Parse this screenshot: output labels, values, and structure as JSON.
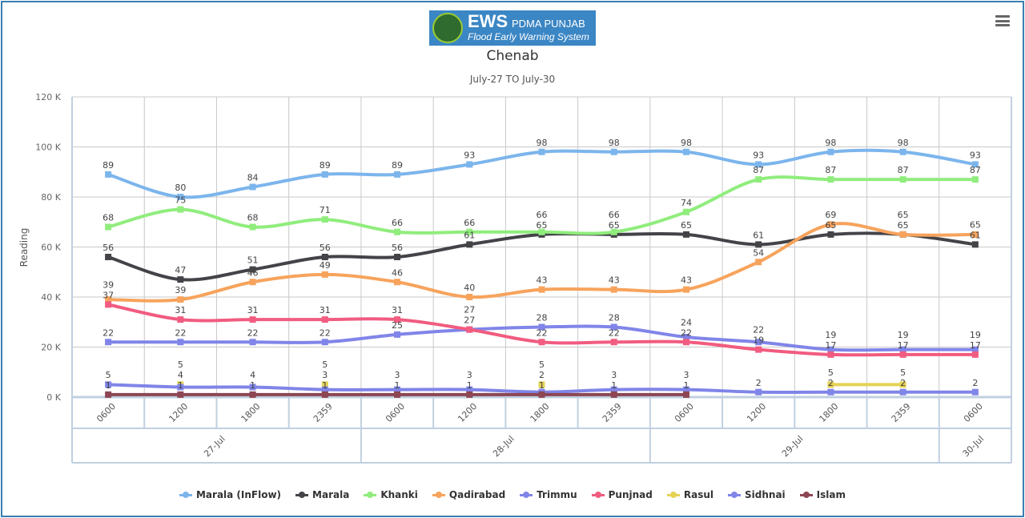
{
  "logo": {
    "big": "EWS",
    "pd": "PDMA PUNJAB",
    "sub": "Flood Early Warning System"
  },
  "menu_icon": "hamburger-icon",
  "chart_data": {
    "type": "line",
    "title": "Chenab",
    "subtitle": "July-27 TO July-30",
    "ylabel": "Reading",
    "ylim": [
      0,
      120
    ],
    "yticks": [
      "0 K",
      "20 K",
      "40 K",
      "60 K",
      "80 K",
      "100 K",
      "120 K"
    ],
    "x": [
      "0600",
      "1200",
      "1800",
      "2359",
      "0600",
      "1200",
      "1800",
      "2359",
      "0600",
      "1200",
      "1800",
      "2359",
      "0600"
    ],
    "groups": [
      {
        "label": "27-Jul",
        "span": 4
      },
      {
        "label": "28-Jul",
        "span": 4
      },
      {
        "label": "29-Jul",
        "span": 4
      },
      {
        "label": "30-Jul",
        "span": 1
      }
    ],
    "legend_position": "bottom",
    "series": [
      {
        "name": "Marala (InFlow)",
        "color": "#7cb5ec",
        "values": [
          89,
          80,
          84,
          89,
          89,
          93,
          98,
          98,
          98,
          93,
          98,
          98,
          93
        ]
      },
      {
        "name": "Marala",
        "color": "#434348",
        "values": [
          56,
          47,
          51,
          56,
          56,
          61,
          65,
          65,
          65,
          61,
          65,
          65,
          61
        ]
      },
      {
        "name": "Khanki",
        "color": "#90ed7d",
        "values": [
          68,
          75,
          68,
          71,
          66,
          66,
          66,
          66,
          74,
          87,
          87,
          87,
          87
        ]
      },
      {
        "name": "Qadirabad",
        "color": "#f7a35c",
        "values": [
          39,
          39,
          46,
          49,
          46,
          40,
          43,
          43,
          43,
          54,
          69,
          65,
          65
        ]
      },
      {
        "name": "Trimmu",
        "color": "#8085e9",
        "values": [
          22,
          22,
          22,
          22,
          25,
          27,
          28,
          28,
          24,
          22,
          19,
          19,
          19
        ]
      },
      {
        "name": "Punjnad",
        "color": "#f15c80",
        "values": [
          37,
          31,
          31,
          31,
          31,
          27,
          22,
          22,
          22,
          19,
          17,
          17,
          17
        ]
      },
      {
        "name": "Rasul",
        "color": "#e4d354",
        "values": [
          null,
          5,
          null,
          5,
          null,
          null,
          5,
          null,
          null,
          null,
          5,
          5,
          null
        ]
      },
      {
        "name": "Sidhnai",
        "color": "#8085e8",
        "values": [
          5,
          4,
          4,
          3,
          3,
          3,
          2,
          3,
          3,
          2,
          2,
          2,
          2
        ]
      },
      {
        "name": "Islam",
        "color": "#8d4653",
        "values": [
          1,
          1,
          1,
          1,
          1,
          1,
          1,
          1,
          1,
          null,
          null,
          null,
          null
        ]
      }
    ]
  }
}
